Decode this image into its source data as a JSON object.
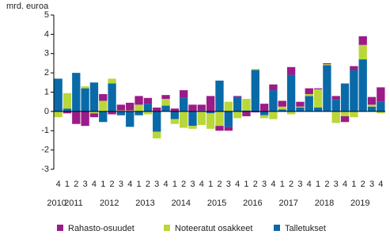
{
  "chart_data": {
    "type": "bar",
    "stacked": true,
    "y_axis_label": "mrd. euroa",
    "categories": [
      "4",
      "1",
      "2",
      "3",
      "4",
      "1",
      "2",
      "3",
      "4",
      "1",
      "2",
      "3",
      "4",
      "1",
      "2",
      "3",
      "4",
      "1",
      "2",
      "3",
      "4",
      "1",
      "2",
      "3",
      "4",
      "1",
      "2",
      "3",
      "4",
      "1",
      "2",
      "3",
      "4",
      "1",
      "2",
      "3",
      "4"
    ],
    "year_labels": [
      "2010",
      "2011",
      "2012",
      "2013",
      "2014",
      "2015",
      "2016",
      "2017",
      "2018",
      "2019"
    ],
    "series": [
      {
        "name": "Talletukset",
        "color": "#0a6aa8",
        "values": [
          1.7,
          0.15,
          2.0,
          1.2,
          1.5,
          -0.55,
          1.45,
          -0.2,
          -0.8,
          -0.2,
          0.4,
          -1.05,
          0.3,
          -0.4,
          0.7,
          -0.75,
          0.05,
          -0.1,
          1.6,
          -0.8,
          0.75,
          0.05,
          2.15,
          -0.2,
          1.1,
          0.1,
          1.9,
          0.2,
          0.8,
          0.2,
          2.4,
          0.6,
          1.45,
          2.15,
          2.7,
          0.25,
          0.5
        ]
      },
      {
        "name": "Noteeratut osakkeet",
        "color": "#b9d739",
        "values": [
          -0.3,
          0.8,
          0,
          0.1,
          -0.1,
          0.55,
          0.25,
          0.05,
          0.05,
          0.35,
          -0.15,
          -0.35,
          0.35,
          -0.25,
          -0.85,
          -0.15,
          -0.7,
          -0.8,
          -0.75,
          0.5,
          -0.35,
          0.6,
          0.05,
          -0.15,
          -0.4,
          0.15,
          -0.15,
          0.05,
          0.1,
          0.95,
          0.05,
          -0.6,
          -0.25,
          -0.3,
          0.75,
          0.1,
          -0.1
        ]
      },
      {
        "name": "Rahasto-osuudet",
        "color": "#9b1b88",
        "values": [
          0,
          -0.1,
          -0.65,
          -0.75,
          -0.2,
          0.35,
          -0.15,
          0.3,
          0.4,
          0.45,
          0.3,
          0.2,
          0.2,
          0.15,
          0.4,
          0.35,
          0.3,
          0.8,
          -0.25,
          -0.2,
          0.05,
          -0.25,
          -0.05,
          0.4,
          0.3,
          0.3,
          0.4,
          0.25,
          0.3,
          0.05,
          0.05,
          0.2,
          -0.3,
          0.2,
          0.45,
          0.4,
          0.75
        ]
      }
    ],
    "ylim": [
      -3,
      5
    ],
    "yticks": [
      -3,
      -2,
      -1,
      0,
      1,
      2,
      3,
      4,
      5
    ],
    "legend": "bottom"
  }
}
